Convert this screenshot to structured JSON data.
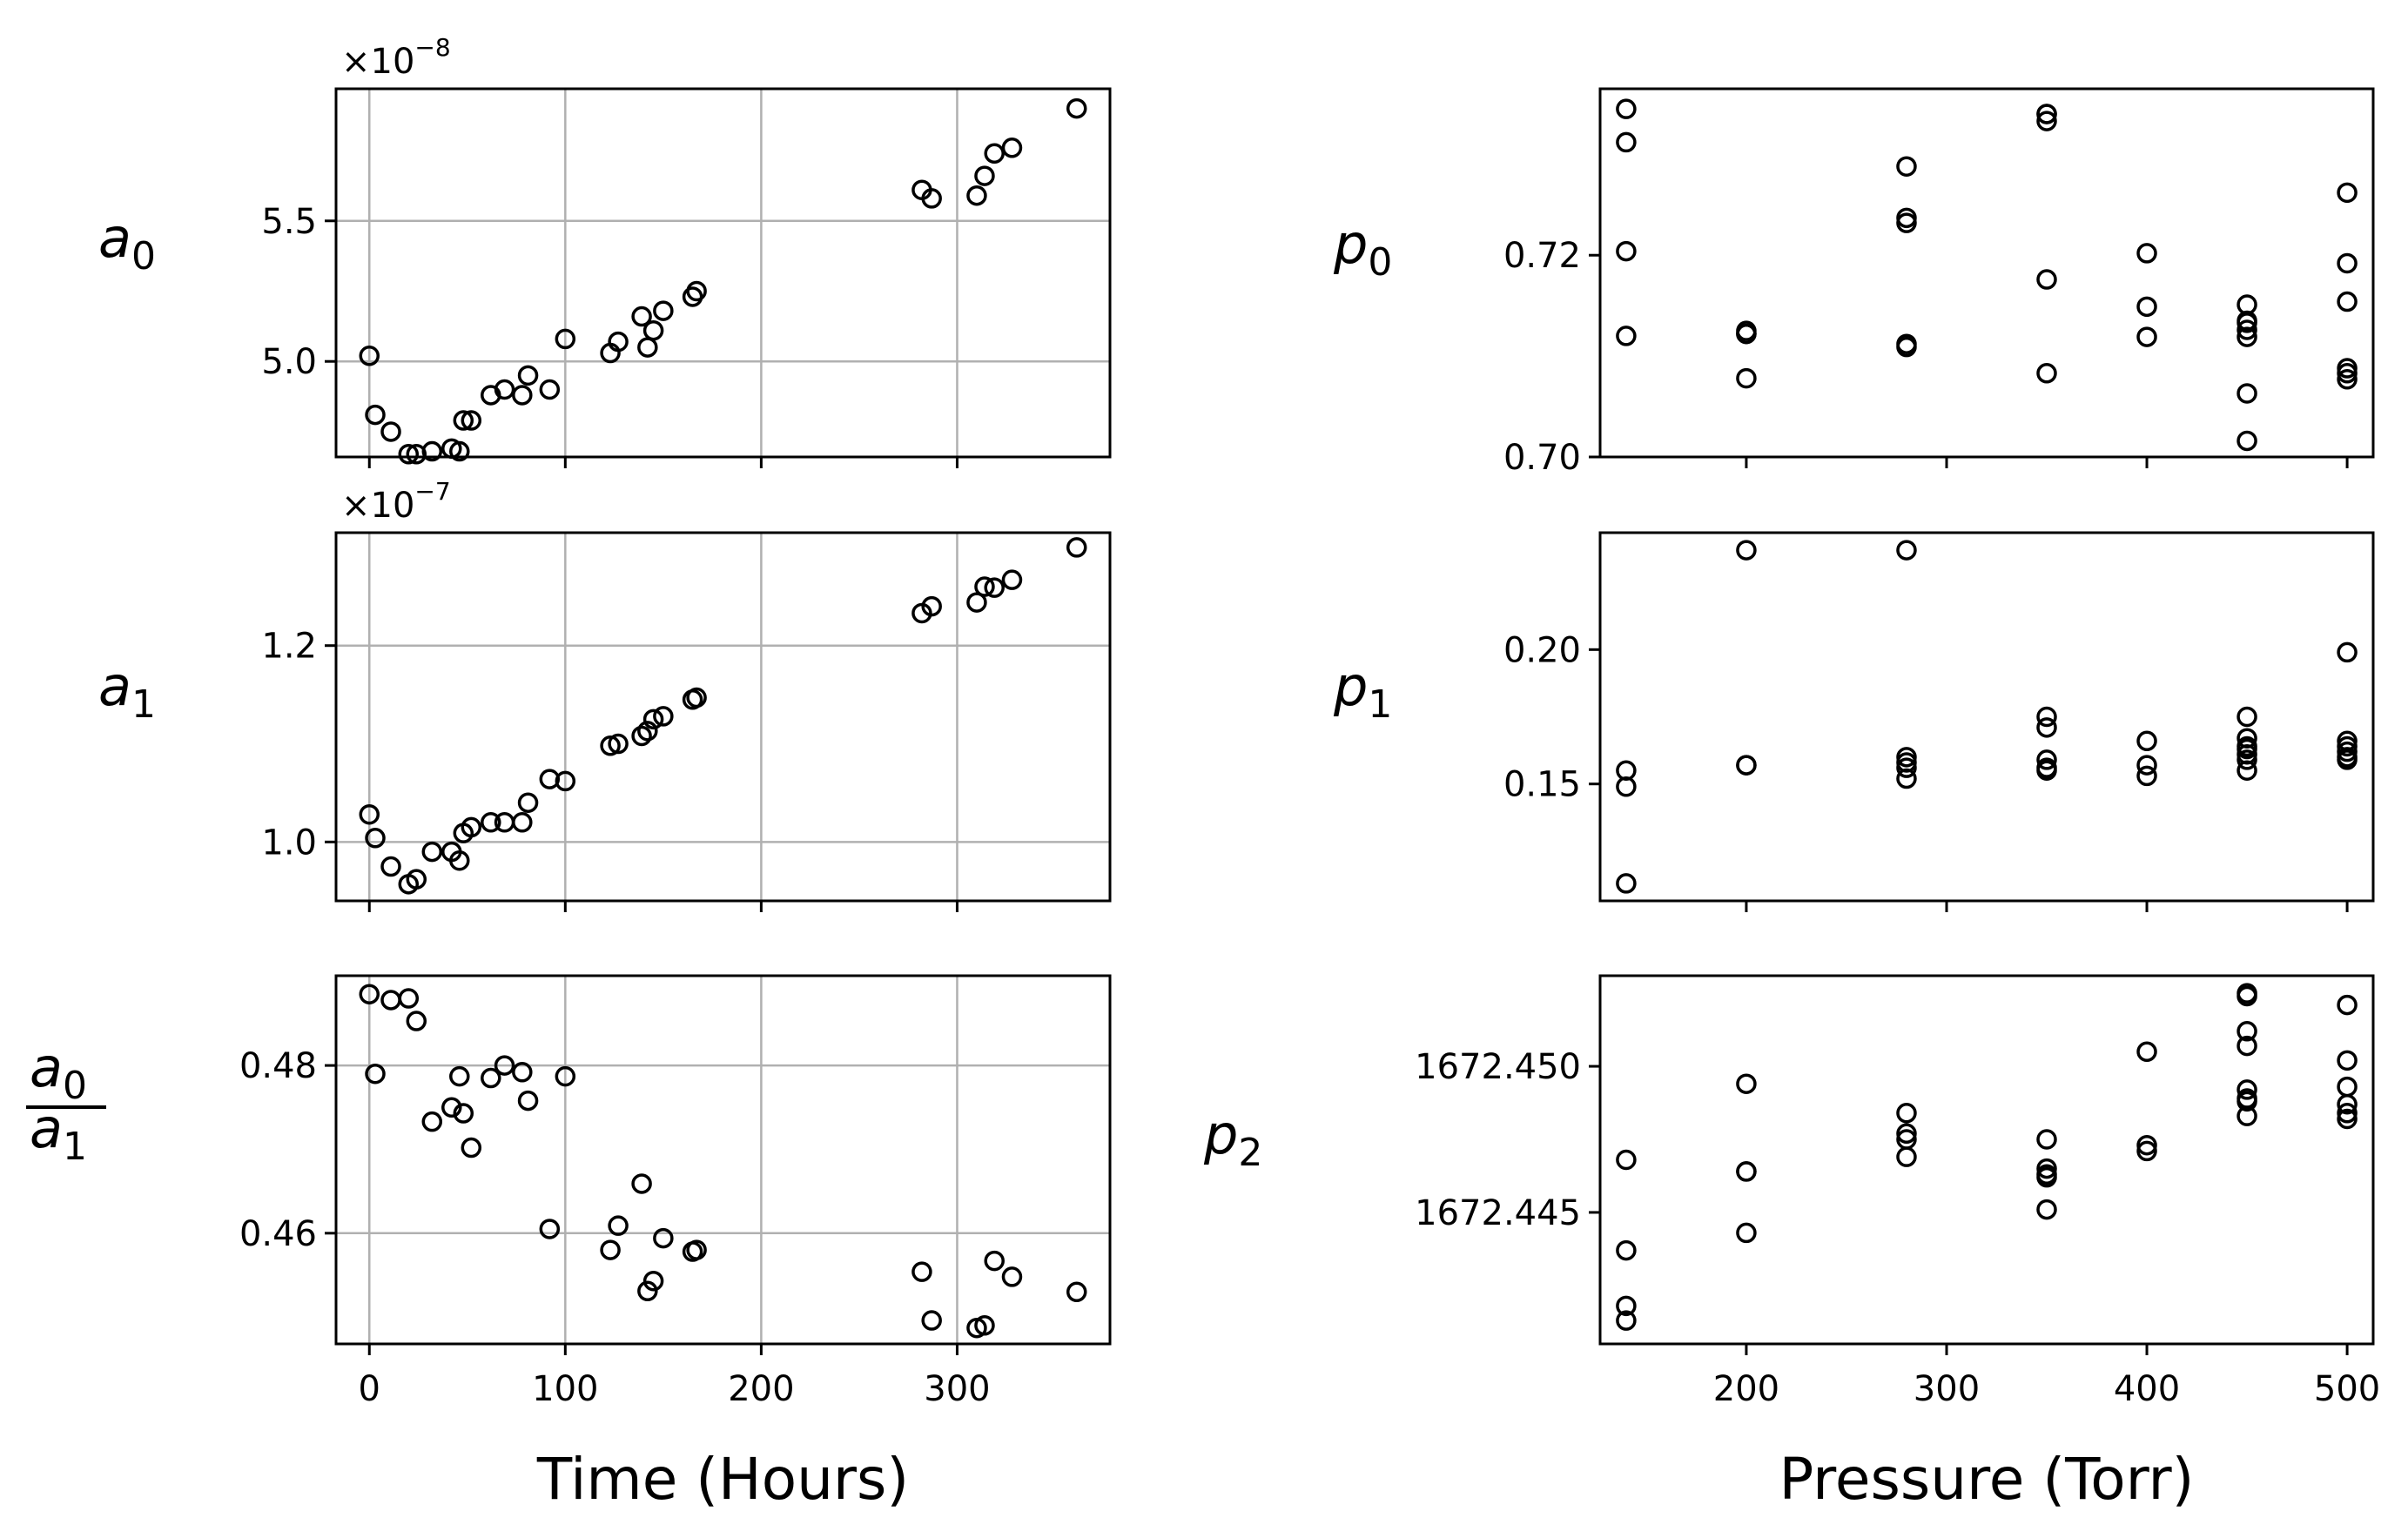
{
  "chart_data": [
    {
      "type": "scatter",
      "id": "a0",
      "ylabel": "a",
      "ylabel_sub": "0",
      "offset_text": "×10",
      "offset_exp": "−8",
      "xlim": [
        -17,
        378
      ],
      "ylim": [
        4.66,
        5.97
      ],
      "grid": true,
      "xticks": [
        0,
        100,
        200,
        300
      ],
      "xtick_labels": [],
      "yticks": [
        5.0,
        5.5
      ],
      "ytick_labels": [
        "5.0",
        "5.5"
      ],
      "x": [
        0,
        3,
        11,
        20,
        24,
        32,
        42,
        46,
        48,
        52,
        62,
        69,
        78,
        81,
        92,
        100,
        123,
        127,
        139,
        142,
        145,
        150,
        165,
        167,
        282,
        287,
        310,
        314,
        319,
        328,
        361
      ],
      "y": [
        5.02,
        4.81,
        4.75,
        4.67,
        4.67,
        4.68,
        4.69,
        4.68,
        4.79,
        4.79,
        4.88,
        4.9,
        4.88,
        4.95,
        4.9,
        5.08,
        5.03,
        5.07,
        5.16,
        5.05,
        5.11,
        5.18,
        5.23,
        5.25,
        5.61,
        5.58,
        5.59,
        5.66,
        5.74,
        5.76,
        5.9
      ]
    },
    {
      "type": "scatter",
      "id": "a1",
      "ylabel": "a",
      "ylabel_sub": "1",
      "offset_text": "×10",
      "offset_exp": "−7",
      "xlim": [
        -17,
        378
      ],
      "ylim": [
        0.94,
        1.315
      ],
      "grid": true,
      "xticks": [
        0,
        100,
        200,
        300
      ],
      "xtick_labels": [],
      "yticks": [
        1.0,
        1.2
      ],
      "ytick_labels": [
        "1.0",
        "1.2"
      ],
      "x": [
        0,
        3,
        11,
        20,
        24,
        32,
        42,
        46,
        48,
        52,
        62,
        69,
        78,
        81,
        92,
        100,
        123,
        127,
        139,
        142,
        145,
        150,
        165,
        167,
        282,
        287,
        310,
        314,
        319,
        328,
        361
      ],
      "y": [
        1.028,
        1.004,
        0.975,
        0.957,
        0.962,
        0.99,
        0.99,
        0.981,
        1.009,
        1.015,
        1.02,
        1.02,
        1.02,
        1.04,
        1.064,
        1.062,
        1.098,
        1.1,
        1.108,
        1.113,
        1.125,
        1.128,
        1.145,
        1.147,
        1.233,
        1.24,
        1.244,
        1.26,
        1.259,
        1.267,
        1.3
      ]
    },
    {
      "type": "scatter",
      "id": "ratio",
      "ylabel_num": "a",
      "ylabel_num_sub": "0",
      "ylabel_den": "a",
      "ylabel_den_sub": "1",
      "xlabel": "Time (Hours)",
      "xlim": [
        -17,
        378
      ],
      "ylim": [
        0.4468,
        0.4907
      ],
      "grid": true,
      "xticks": [
        0,
        100,
        200,
        300
      ],
      "xtick_labels": [
        "0",
        "100",
        "200",
        "300"
      ],
      "yticks": [
        0.46,
        0.48
      ],
      "ytick_labels": [
        "0.46",
        "0.48"
      ],
      "x": [
        0,
        3,
        11,
        20,
        24,
        32,
        42,
        46,
        48,
        52,
        62,
        69,
        78,
        81,
        92,
        100,
        123,
        127,
        139,
        142,
        145,
        150,
        165,
        167,
        282,
        287,
        310,
        314,
        319,
        328,
        361
      ],
      "y": [
        0.4885,
        0.479,
        0.4878,
        0.488,
        0.4853,
        0.4733,
        0.475,
        0.4787,
        0.4743,
        0.4702,
        0.4785,
        0.48,
        0.4792,
        0.4758,
        0.4605,
        0.4787,
        0.458,
        0.4609,
        0.4659,
        0.4531,
        0.4543,
        0.4594,
        0.4578,
        0.458,
        0.4554,
        0.4496,
        0.4487,
        0.449,
        0.4567,
        0.4548,
        0.453
      ]
    },
    {
      "type": "scatter",
      "id": "p0",
      "ylabel": "p",
      "ylabel_sub": "0",
      "xlim": [
        127,
        513
      ],
      "ylim": [
        0.7,
        0.7365
      ],
      "grid": false,
      "xticks": [
        200,
        300,
        400,
        500
      ],
      "xtick_labels": [],
      "yticks": [
        0.7,
        0.72
      ],
      "ytick_labels": [
        "0.70",
        "0.72"
      ],
      "x": [
        140,
        140,
        140,
        140,
        200,
        200,
        200,
        200,
        280,
        280,
        280,
        280,
        280,
        350,
        350,
        350,
        350,
        350,
        400,
        400,
        400,
        450,
        450,
        450,
        450,
        450,
        450,
        450,
        500,
        500,
        500,
        500,
        500,
        500
      ],
      "y": [
        0.7345,
        0.7312,
        0.7204,
        0.712,
        0.7125,
        0.7122,
        0.7078,
        0.7122,
        0.7288,
        0.7237,
        0.7232,
        0.7112,
        0.7109,
        0.734,
        0.7333,
        0.7176,
        0.7083,
        0.734,
        0.7202,
        0.7149,
        0.7119,
        0.7133,
        0.7119,
        0.7126,
        0.7151,
        0.7135,
        0.7063,
        0.7016,
        0.7262,
        0.7192,
        0.7154,
        0.7088,
        0.7083,
        0.7077
      ]
    },
    {
      "type": "scatter",
      "id": "p1",
      "ylabel": "p",
      "ylabel_sub": "1",
      "xlim": [
        127,
        513
      ],
      "ylim": [
        0.1065,
        0.2435
      ],
      "grid": false,
      "xticks": [
        200,
        300,
        400,
        500
      ],
      "xtick_labels": [],
      "yticks": [
        0.15,
        0.2
      ],
      "ytick_labels": [
        "0.15",
        "0.20"
      ],
      "x": [
        140,
        140,
        140,
        200,
        200,
        200,
        280,
        280,
        280,
        280,
        280,
        350,
        350,
        350,
        350,
        350,
        400,
        400,
        400,
        450,
        450,
        450,
        450,
        450,
        450,
        450,
        500,
        500,
        500,
        500,
        500,
        500
      ],
      "y": [
        0.155,
        0.149,
        0.113,
        0.157,
        0.157,
        0.237,
        0.237,
        0.158,
        0.16,
        0.156,
        0.152,
        0.175,
        0.171,
        0.159,
        0.155,
        0.156,
        0.166,
        0.157,
        0.153,
        0.175,
        0.167,
        0.163,
        0.161,
        0.164,
        0.159,
        0.155,
        0.199,
        0.166,
        0.164,
        0.162,
        0.159,
        0.16
      ]
    },
    {
      "type": "scatter",
      "id": "p2",
      "ylabel": "p",
      "ylabel_sub": "2",
      "xlabel": "Pressure (Torr)",
      "xlim": [
        127,
        513
      ],
      "ylim": [
        1672.4405,
        1672.4531
      ],
      "grid": false,
      "xticks": [
        200,
        300,
        400,
        500
      ],
      "xtick_labels": [
        "200",
        "300",
        "400",
        "500"
      ],
      "yticks": [
        1672.445,
        1672.45
      ],
      "ytick_labels": [
        "1672.445",
        "1672.450"
      ],
      "x": [
        140,
        140,
        140,
        140,
        200,
        200,
        200,
        200,
        280,
        280,
        280,
        280,
        350,
        350,
        350,
        350,
        350,
        400,
        400,
        400,
        450,
        450,
        450,
        450,
        450,
        450,
        450,
        450,
        500,
        500,
        500,
        500,
        500,
        500
      ],
      "y": [
        1672.4468,
        1672.4437,
        1672.4418,
        1672.4413,
        1672.4494,
        1672.4464,
        1672.4443,
        1672.4464,
        1672.4484,
        1672.4477,
        1672.4475,
        1672.4469,
        1672.4475,
        1672.4465,
        1672.4462,
        1672.4451,
        1672.4463,
        1672.4505,
        1672.4473,
        1672.4471,
        1672.4525,
        1672.4524,
        1672.4512,
        1672.4507,
        1672.4492,
        1672.4489,
        1672.4488,
        1672.4483,
        1672.4521,
        1672.4502,
        1672.4493,
        1672.4487,
        1672.4484,
        1672.4482
      ]
    }
  ]
}
